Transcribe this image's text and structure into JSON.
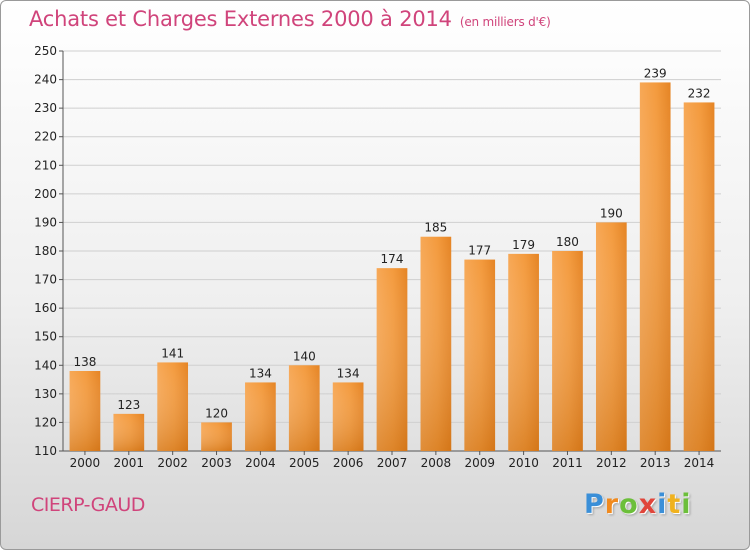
{
  "header": {
    "title": "Achats et Charges Externes 2000 à 2014",
    "subtitle": "(en milliers d'€)"
  },
  "footer": {
    "commune": "CIERP-GAUD",
    "logo_letters": [
      "P",
      "r",
      "o",
      "x",
      "i",
      "t",
      "i"
    ],
    "logo_colors": [
      "#3a8fd8",
      "#f08a1e",
      "#6cbf3a",
      "#e0453a",
      "#3a8fd8",
      "#f0b21e",
      "#6cbf3a"
    ]
  },
  "chart_data": {
    "type": "bar",
    "title": "Achats et Charges Externes 2000 à 2014",
    "subtitle": "(en milliers d'€)",
    "categories": [
      "2000",
      "2001",
      "2002",
      "2003",
      "2004",
      "2005",
      "2006",
      "2007",
      "2008",
      "2009",
      "2010",
      "2011",
      "2012",
      "2013",
      "2014"
    ],
    "values": [
      138,
      123,
      141,
      120,
      134,
      140,
      134,
      174,
      185,
      177,
      179,
      180,
      190,
      239,
      232
    ],
    "ylim": [
      110,
      250
    ],
    "yticks": [
      110,
      120,
      130,
      140,
      150,
      160,
      170,
      180,
      190,
      200,
      210,
      220,
      230,
      240,
      250
    ],
    "grid": true,
    "bar_color": "#f29a3e"
  }
}
